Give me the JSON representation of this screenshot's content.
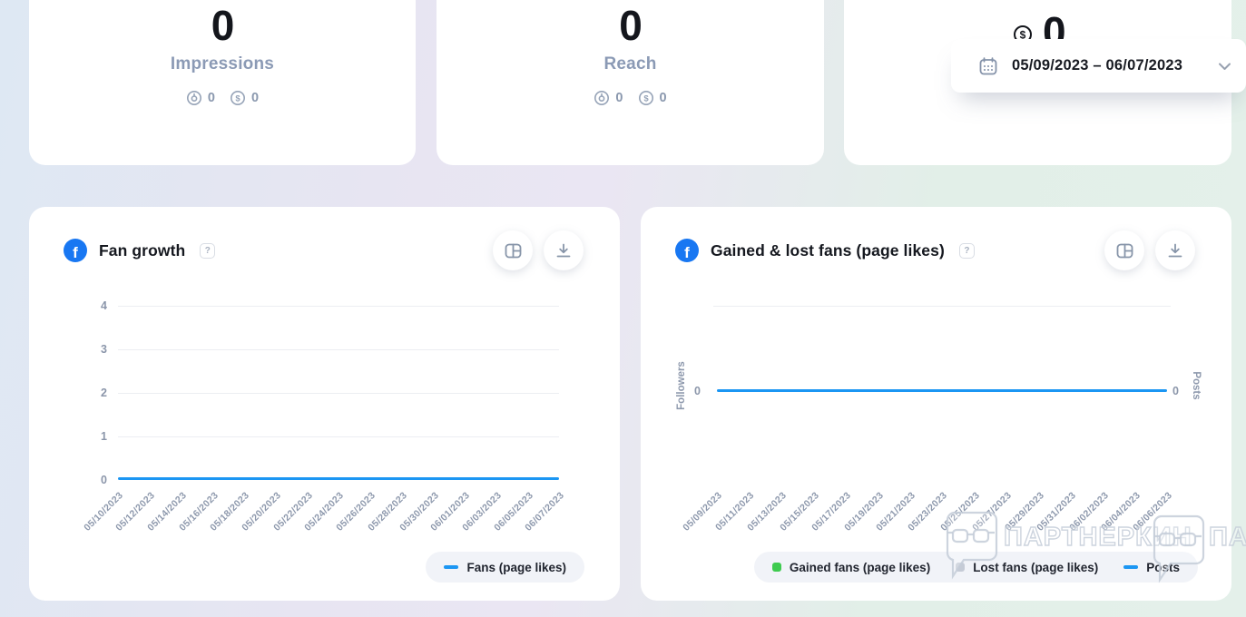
{
  "ui": {
    "facebook_glyph": "f",
    "help_glyph": "?"
  },
  "stat_cards": [
    {
      "value": "0",
      "label": "Impressions",
      "organic_value": "0",
      "paid_value": "0"
    },
    {
      "value": "0",
      "label": "Reach",
      "organic_value": "0",
      "paid_value": "0"
    },
    {
      "value": "0"
    }
  ],
  "date_picker": {
    "range": "05/09/2023 – 06/07/2023"
  },
  "watermark": {
    "text": "ПАРТНЕРКИН",
    "partial_text": "ПАР"
  },
  "chart_data": [
    {
      "type": "line",
      "title": "Fan growth",
      "x": [
        "05/10/2023",
        "05/12/2023",
        "05/14/2023",
        "05/16/2023",
        "05/18/2023",
        "05/20/2023",
        "05/22/2023",
        "05/24/2023",
        "05/26/2023",
        "05/28/2023",
        "05/30/2023",
        "06/01/2023",
        "06/03/2023",
        "06/05/2023",
        "06/07/2023"
      ],
      "series": [
        {
          "name": "Fans (page likes)",
          "color": "#1b96f3",
          "values": [
            0,
            0,
            0,
            0,
            0,
            0,
            0,
            0,
            0,
            0,
            0,
            0,
            0,
            0,
            0
          ]
        }
      ],
      "ylim": [
        0,
        4
      ],
      "yticks": [
        4,
        3,
        2,
        1,
        0
      ],
      "xlabel": "",
      "ylabel": "",
      "grid": true,
      "legend_position": "bottom-right"
    },
    {
      "type": "line",
      "title": "Gained & lost fans (page likes)",
      "x": [
        "05/09/2023",
        "05/11/2023",
        "05/13/2023",
        "05/15/2023",
        "05/17/2023",
        "05/19/2023",
        "05/21/2023",
        "05/23/2023",
        "05/25/2023",
        "05/27/2023",
        "05/29/2023",
        "05/31/2023",
        "06/02/2023",
        "06/04/2023",
        "06/06/2023"
      ],
      "series": [
        {
          "name": "Gained fans (page likes)",
          "color": "#3ecb4f",
          "values": [
            0,
            0,
            0,
            0,
            0,
            0,
            0,
            0,
            0,
            0,
            0,
            0,
            0,
            0,
            0
          ]
        },
        {
          "name": "Lost fans (page likes)",
          "color": "#c5cbd6",
          "values": [
            0,
            0,
            0,
            0,
            0,
            0,
            0,
            0,
            0,
            0,
            0,
            0,
            0,
            0,
            0
          ]
        },
        {
          "name": "Posts",
          "color": "#1b96f3",
          "values": [
            0,
            0,
            0,
            0,
            0,
            0,
            0,
            0,
            0,
            0,
            0,
            0,
            0,
            0,
            0
          ]
        }
      ],
      "ylabel_left": "Followers",
      "ylabel_right": "Posts",
      "yticks_left": [
        "0"
      ],
      "yticks_right": [
        "0"
      ],
      "grid": true,
      "legend_position": "bottom-right"
    }
  ]
}
